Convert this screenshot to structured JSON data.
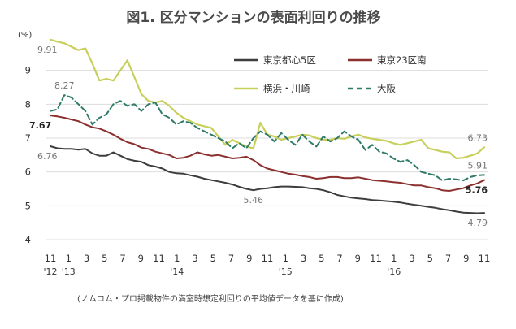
{
  "chart_data": {
    "type": "line",
    "title": "図1. 区分マンションの表面利回りの推移",
    "unit": "(%)",
    "note": "(ノムコム・プロ掲載物件の満室時想定利回りの平均値データを基に作成)",
    "ylim": [
      4,
      10
    ],
    "y_ticks": [
      "4",
      "5",
      "6",
      "7",
      "8",
      "9"
    ],
    "x_ticks": [
      "11",
      "1",
      "3",
      "5",
      "7",
      "9",
      "11",
      "1",
      "3",
      "5",
      "7",
      "9",
      "11",
      "1",
      "3",
      "5",
      "7",
      "9",
      "11",
      "1",
      "3",
      "5",
      "7",
      "9",
      "11"
    ],
    "year_labels": [
      "'12",
      "'13",
      "'14",
      "'15",
      "'16"
    ],
    "grid": true,
    "legend_position": "top-right",
    "series": [
      {
        "name": "東京都心5区",
        "color": "#3d3d3d",
        "style": "solid",
        "values": [
          6.76,
          6.7,
          6.68,
          6.68,
          6.66,
          6.68,
          6.55,
          6.48,
          6.48,
          6.58,
          6.48,
          6.38,
          6.33,
          6.3,
          6.2,
          6.16,
          6.1,
          6.0,
          5.96,
          5.95,
          5.9,
          5.86,
          5.8,
          5.76,
          5.72,
          5.68,
          5.63,
          5.56,
          5.5,
          5.46,
          5.5,
          5.52,
          5.55,
          5.57,
          5.57,
          5.56,
          5.55,
          5.52,
          5.5,
          5.46,
          5.4,
          5.32,
          5.28,
          5.24,
          5.22,
          5.2,
          5.17,
          5.16,
          5.14,
          5.12,
          5.1,
          5.06,
          5.03,
          5.0,
          4.97,
          4.94,
          4.9,
          4.87,
          4.83,
          4.8,
          4.79,
          4.78,
          4.79
        ]
      },
      {
        "name": "東京23区南",
        "color": "#8c2f2f",
        "style": "solid",
        "values": [
          7.67,
          7.64,
          7.6,
          7.55,
          7.5,
          7.4,
          7.32,
          7.28,
          7.2,
          7.1,
          6.98,
          6.88,
          6.82,
          6.72,
          6.68,
          6.6,
          6.55,
          6.5,
          6.4,
          6.42,
          6.48,
          6.58,
          6.52,
          6.48,
          6.5,
          6.45,
          6.4,
          6.42,
          6.45,
          6.35,
          6.2,
          6.1,
          6.05,
          6.0,
          5.95,
          5.92,
          5.88,
          5.85,
          5.8,
          5.82,
          5.85,
          5.85,
          5.82,
          5.82,
          5.84,
          5.8,
          5.76,
          5.74,
          5.72,
          5.7,
          5.68,
          5.64,
          5.6,
          5.6,
          5.55,
          5.52,
          5.46,
          5.44,
          5.48,
          5.52,
          5.6,
          5.66,
          5.76
        ]
      },
      {
        "name": "横浜・川崎",
        "color": "#c8cf5a",
        "style": "solid",
        "values": [
          9.91,
          9.85,
          9.8,
          9.7,
          9.6,
          9.65,
          9.2,
          8.7,
          8.75,
          8.7,
          9.0,
          9.3,
          8.8,
          8.3,
          8.1,
          8.05,
          8.1,
          7.95,
          7.75,
          7.6,
          7.5,
          7.4,
          7.35,
          7.3,
          7.05,
          6.8,
          6.95,
          6.85,
          6.75,
          6.7,
          7.45,
          7.1,
          7.05,
          6.95,
          7.0,
          7.05,
          7.1,
          7.08,
          7.0,
          6.95,
          6.95,
          7.0,
          6.98,
          7.05,
          7.1,
          7.02,
          6.98,
          6.95,
          6.92,
          6.85,
          6.8,
          6.85,
          6.9,
          6.95,
          6.7,
          6.65,
          6.6,
          6.58,
          6.4,
          6.42,
          6.48,
          6.55,
          6.73
        ]
      },
      {
        "name": "大阪",
        "color": "#2f7a68",
        "style": "dashed",
        "values": [
          7.8,
          7.85,
          8.27,
          8.2,
          8.0,
          7.8,
          7.4,
          7.6,
          7.7,
          8.0,
          8.1,
          7.95,
          8.0,
          7.8,
          8.0,
          8.05,
          7.7,
          7.6,
          7.4,
          7.5,
          7.45,
          7.3,
          7.2,
          7.1,
          7.0,
          6.9,
          6.7,
          6.85,
          6.7,
          7.0,
          7.2,
          7.1,
          6.9,
          7.15,
          6.95,
          6.8,
          7.1,
          6.9,
          6.75,
          7.05,
          6.9,
          7.0,
          7.2,
          7.05,
          6.95,
          6.65,
          6.8,
          6.6,
          6.55,
          6.4,
          6.3,
          6.35,
          6.2,
          6.0,
          5.95,
          5.9,
          5.75,
          5.8,
          5.78,
          5.75,
          5.85,
          5.9,
          5.91
        ]
      }
    ],
    "annotations": [
      {
        "text": "9.91",
        "series": 2,
        "index": 0,
        "place": "below",
        "bold": false
      },
      {
        "text": "8.27",
        "series": 3,
        "index": 2,
        "place": "above",
        "bold": false
      },
      {
        "text": "7.67",
        "series": 1,
        "index": 0,
        "place": "below-left",
        "bold": true
      },
      {
        "text": "6.76",
        "series": 0,
        "index": 0,
        "place": "below",
        "bold": false
      },
      {
        "text": "5.46",
        "series": 0,
        "index": 29,
        "place": "below",
        "bold": false
      },
      {
        "text": "6.73",
        "series": 2,
        "index": 62,
        "place": "above",
        "bold": false
      },
      {
        "text": "5.91",
        "series": 3,
        "index": 62,
        "place": "above",
        "bold": false
      },
      {
        "text": "5.76",
        "series": 1,
        "index": 62,
        "place": "below",
        "bold": true
      },
      {
        "text": "4.79",
        "series": 0,
        "index": 62,
        "place": "below",
        "bold": false
      }
    ]
  }
}
